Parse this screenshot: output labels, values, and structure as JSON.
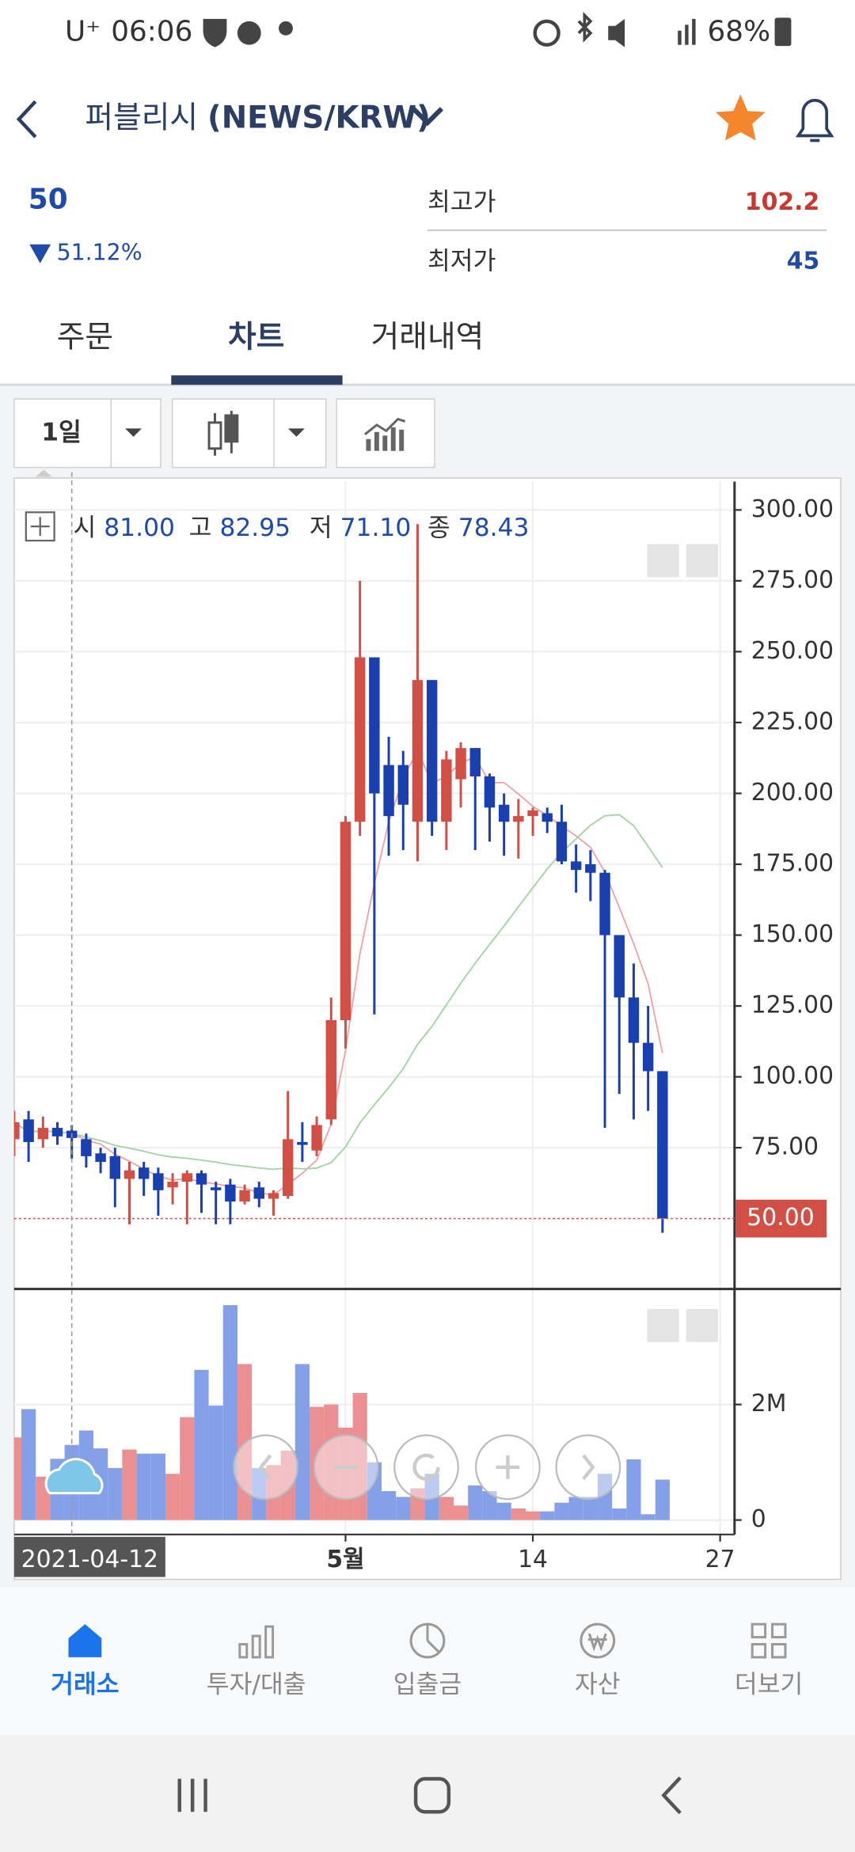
{
  "status_bar": {
    "carrier": "U⁺",
    "time": "06:06",
    "battery": "68%"
  },
  "header": {
    "name": "퍼블리시",
    "pair": "(NEWS/KRW)"
  },
  "summary": {
    "price": "50",
    "change": "51.12%",
    "high_label": "최고가",
    "high": "102.2",
    "low_label": "최저가",
    "low": "45"
  },
  "tabs": {
    "items": [
      "주문",
      "차트",
      "거래내역"
    ],
    "active": 1
  },
  "toolbar": {
    "interval": "1일"
  },
  "chart_data": {
    "type": "candlestick",
    "ohlc_legend": [
      {
        "label": "시",
        "value": "81.00"
      },
      {
        "label": "고",
        "value": "82.95"
      },
      {
        "label": "저",
        "value": "71.10"
      },
      {
        "label": "종",
        "value": "78.43"
      }
    ],
    "x": [
      "2021-04-08",
      "2021-04-09",
      "2021-04-10",
      "2021-04-11",
      "2021-04-12",
      "2021-04-13",
      "2021-04-14",
      "2021-04-15",
      "2021-04-16",
      "2021-04-17",
      "2021-04-18",
      "2021-04-19",
      "2021-04-20",
      "2021-04-21",
      "2021-04-22",
      "2021-04-23",
      "2021-04-24",
      "2021-04-25",
      "2021-04-26",
      "2021-04-27",
      "2021-04-28",
      "2021-04-29",
      "2021-04-30",
      "2021-05-01",
      "2021-05-02",
      "2021-05-03",
      "2021-05-04",
      "2021-05-05",
      "2021-05-06",
      "2021-05-07",
      "2021-05-08",
      "2021-05-09",
      "2021-05-10",
      "2021-05-11",
      "2021-05-12",
      "2021-05-13",
      "2021-05-14",
      "2021-05-15",
      "2021-05-16",
      "2021-05-17",
      "2021-05-18",
      "2021-05-19",
      "2021-05-20",
      "2021-05-21",
      "2021-05-22",
      "2021-05-23"
    ],
    "open": [
      78,
      85,
      78,
      82,
      81,
      78,
      73,
      72,
      64,
      68,
      66,
      61,
      63,
      66,
      61,
      62,
      56,
      61,
      57,
      58,
      77,
      74,
      85,
      120,
      190,
      248,
      210,
      210,
      190,
      240,
      190,
      205,
      216,
      206,
      196,
      190,
      192,
      193,
      190,
      176,
      175,
      172,
      150,
      128,
      112,
      102
    ],
    "high": [
      88,
      88,
      86,
      84,
      82.95,
      80,
      75,
      75,
      70,
      70,
      68,
      66,
      67,
      67,
      63,
      64,
      62,
      63,
      60,
      95,
      84,
      86,
      128,
      192,
      275,
      248,
      220,
      215,
      295,
      240,
      215,
      218,
      216,
      207,
      200,
      198,
      195,
      195,
      196,
      182,
      180,
      173,
      150,
      140,
      125,
      102
    ],
    "low": [
      72,
      70,
      75,
      76,
      71.1,
      68,
      66,
      54,
      48,
      58,
      51,
      55,
      48,
      52,
      48,
      48,
      55,
      54,
      51,
      57,
      70,
      72,
      83,
      110,
      185,
      122,
      178,
      180,
      176,
      185,
      180,
      195,
      180,
      183,
      178,
      177,
      185,
      186,
      175,
      165,
      162,
      82,
      94,
      85,
      88,
      45
    ],
    "close": [
      84,
      77,
      82,
      79,
      78.43,
      72,
      70,
      64,
      67,
      64,
      60,
      63,
      66,
      62,
      60,
      56,
      60,
      57,
      59,
      78,
      76,
      83,
      120,
      190,
      248,
      200,
      192,
      196,
      240,
      190,
      212,
      216,
      206,
      195,
      190,
      192,
      194,
      190,
      176,
      173,
      172,
      150,
      128,
      112,
      102,
      50
    ],
    "volume": [
      1430000,
      1920000,
      750000,
      1060000,
      1300000,
      1550000,
      1240000,
      900000,
      1220000,
      1150000,
      1150000,
      800000,
      1780000,
      2600000,
      1980000,
      3720000,
      2700000,
      900000,
      950000,
      1200000,
      2700000,
      1960000,
      2000000,
      1600000,
      2200000,
      1000000,
      500000,
      400000,
      550000,
      800000,
      400000,
      250000,
      600000,
      500000,
      300000,
      200000,
      150000,
      150000,
      300000,
      400000,
      400000,
      800000,
      200000,
      1050000,
      100000,
      700000
    ],
    "colors": {
      "up": "#d24f45",
      "down": "#1a3fae",
      "up_volume": "#ea8f92",
      "down_volume": "#84a0e8"
    },
    "moving_averages": [
      {
        "window": 5,
        "color": "#eda0a6"
      },
      {
        "window": 20,
        "color": "#9fd39f"
      }
    ],
    "xlim": [
      "2021-04-08",
      "2021-05-28"
    ],
    "xticks": [
      {
        "value": "2021-05-01",
        "label": "5월"
      },
      {
        "value": "2021-05-14",
        "label": "14"
      },
      {
        "value": "2021-05-27",
        "label": "27"
      }
    ],
    "ylim": [
      26,
      310
    ],
    "yticks": [
      {
        "value": 75,
        "label": "75.00"
      },
      {
        "value": 100,
        "label": "100.00"
      },
      {
        "value": 125,
        "label": "125.00"
      },
      {
        "value": 150,
        "label": "150.00"
      },
      {
        "value": 175,
        "label": "175.00"
      },
      {
        "value": 200,
        "label": "200.00"
      },
      {
        "value": 225,
        "label": "225.00"
      },
      {
        "value": 250,
        "label": "250.00"
      },
      {
        "value": 275,
        "label": "275.00"
      },
      {
        "value": 300,
        "label": "300.00"
      }
    ],
    "last_price": {
      "value": 50,
      "label": "50.00"
    },
    "vlim": [
      -250000,
      4000000
    ],
    "vticks": [
      0,
      {
        "value": 2000000,
        "label": "2M"
      }
    ],
    "cursor_date": "2021-04-12",
    "grid": true
  },
  "bottom_nav": {
    "items": [
      "거래소",
      "투자/대출",
      "입출금",
      "자산",
      "더보기"
    ],
    "active": 0
  }
}
